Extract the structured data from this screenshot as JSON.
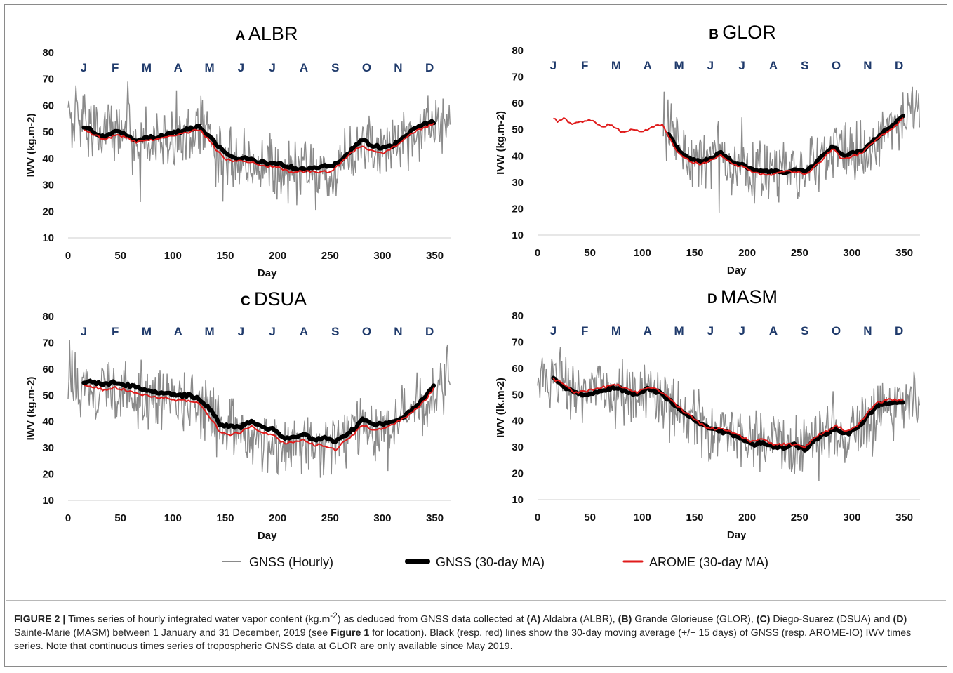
{
  "chart_data": [
    {
      "type": "line",
      "panel_letter": "A",
      "title": "ALBR",
      "xlabel": "Day",
      "ylabel": "IWV (kg.m-2)",
      "xlim": [
        0,
        365
      ],
      "ylim": [
        10,
        80
      ],
      "xticks": [
        "0",
        "50",
        "100",
        "150",
        "200",
        "250",
        "300",
        "350"
      ],
      "yticks": [
        "10",
        "20",
        "30",
        "40",
        "50",
        "60",
        "70",
        "80"
      ],
      "months": [
        "J",
        "F",
        "M",
        "A",
        "M",
        "J",
        "J",
        "A",
        "S",
        "O",
        "N",
        "D"
      ],
      "hourly_range": [
        0,
        365
      ],
      "ma_range": [
        15,
        350
      ],
      "series": [
        {
          "name": "GNSS (Hourly)",
          "x": [
            0,
            15,
            30,
            45,
            55,
            65,
            75,
            90,
            105,
            120,
            130,
            140,
            150,
            160,
            175,
            190,
            205,
            220,
            235,
            250,
            265,
            280,
            290,
            300,
            310,
            320,
            335,
            350,
            365
          ],
          "values": [
            57,
            54,
            49,
            49,
            50,
            46,
            48,
            47,
            50,
            51,
            51,
            45,
            41,
            39,
            40,
            37,
            36,
            35,
            35,
            34,
            40,
            46,
            45,
            43,
            45,
            47,
            51,
            54,
            53
          ]
        },
        {
          "name": "GNSS (30-day MA)",
          "x": [
            15,
            25,
            35,
            45,
            55,
            65,
            75,
            85,
            95,
            105,
            115,
            125,
            130,
            140,
            150,
            160,
            170,
            180,
            190,
            200,
            210,
            220,
            230,
            240,
            250,
            260,
            270,
            280,
            290,
            300,
            310,
            320,
            330,
            340,
            350
          ],
          "values": [
            52,
            50,
            48,
            50,
            49,
            47,
            48,
            48,
            49,
            50,
            51,
            52,
            50,
            46,
            42,
            40,
            40,
            39,
            38,
            38,
            37,
            36,
            36,
            37,
            37,
            39,
            43,
            47,
            45,
            44,
            45,
            48,
            51,
            53,
            54
          ]
        },
        {
          "name": "AROME (30-day MA)",
          "x": [
            15,
            25,
            35,
            45,
            55,
            65,
            75,
            85,
            95,
            105,
            115,
            125,
            130,
            140,
            150,
            160,
            170,
            180,
            190,
            200,
            210,
            220,
            230,
            240,
            250,
            260,
            270,
            280,
            290,
            300,
            310,
            320,
            330,
            340,
            350
          ],
          "values": [
            51,
            49,
            47,
            49,
            48,
            46,
            47,
            47,
            48,
            49,
            50,
            51,
            49,
            44,
            40,
            39,
            39,
            38,
            37,
            37,
            35,
            35,
            35,
            35,
            35,
            38,
            42,
            45,
            43,
            42,
            44,
            47,
            50,
            52,
            53
          ]
        }
      ]
    },
    {
      "type": "line",
      "panel_letter": "B",
      "title": "GLOR",
      "xlabel": "Day",
      "ylabel": "IVW (kg.m-2)",
      "xlim": [
        0,
        365
      ],
      "ylim": [
        10,
        80
      ],
      "xticks": [
        "0",
        "50",
        "100",
        "150",
        "200",
        "250",
        "300",
        "350"
      ],
      "yticks": [
        "10",
        "20",
        "30",
        "40",
        "50",
        "60",
        "70",
        "80"
      ],
      "months": [
        "J",
        "F",
        "M",
        "A",
        "M",
        "J",
        "J",
        "A",
        "S",
        "O",
        "N",
        "D"
      ],
      "hourly_range": [
        120,
        365
      ],
      "ma_range": [
        125,
        350
      ],
      "series": [
        {
          "name": "GNSS (Hourly)",
          "x": [
            120,
            130,
            140,
            150,
            160,
            175,
            190,
            205,
            220,
            235,
            250,
            265,
            280,
            290,
            300,
            310,
            320,
            335,
            350,
            365
          ],
          "values": [
            52,
            48,
            43,
            39,
            38,
            40,
            37,
            35,
            33,
            34,
            34,
            38,
            43,
            42,
            40,
            42,
            45,
            49,
            54,
            60
          ]
        },
        {
          "name": "GNSS (30-day MA)",
          "x": [
            125,
            135,
            145,
            155,
            165,
            175,
            185,
            195,
            205,
            215,
            225,
            235,
            245,
            255,
            265,
            275,
            282,
            290,
            300,
            310,
            320,
            330,
            340,
            350
          ],
          "values": [
            48,
            42,
            39,
            38,
            39,
            41,
            38,
            37,
            35,
            34,
            34,
            34,
            35,
            34,
            37,
            41,
            44,
            40,
            41,
            42,
            46,
            49,
            52,
            56
          ]
        },
        {
          "name": "AROME (30-day MA)",
          "x": [
            15,
            20,
            25,
            35,
            40,
            50,
            60,
            70,
            80,
            90,
            100,
            110,
            120,
            125,
            135,
            145,
            155,
            165,
            175,
            185,
            195,
            205,
            215,
            225,
            235,
            245,
            255,
            265,
            275,
            282,
            290,
            300,
            310,
            320,
            330,
            340,
            350
          ],
          "values": [
            54,
            53,
            54,
            52,
            53,
            54,
            51,
            52,
            49,
            50,
            49,
            51,
            52,
            47,
            41,
            38,
            37,
            38,
            40,
            37,
            36,
            34,
            33,
            33,
            34,
            34,
            33,
            36,
            40,
            43,
            39,
            40,
            41,
            45,
            48,
            51,
            55
          ]
        }
      ]
    },
    {
      "type": "line",
      "panel_letter": "C",
      "title": "DSUA",
      "xlabel": "Day",
      "ylabel": "IWV (kg.m-2)",
      "xlim": [
        0,
        365
      ],
      "ylim": [
        10,
        80
      ],
      "xticks": [
        "0",
        "50",
        "100",
        "150",
        "200",
        "250",
        "300",
        "350"
      ],
      "yticks": [
        "10",
        "20",
        "30",
        "40",
        "50",
        "60",
        "70",
        "80"
      ],
      "months": [
        "J",
        "F",
        "M",
        "A",
        "M",
        "J",
        "J",
        "A",
        "S",
        "O",
        "N",
        "D"
      ],
      "hourly_range": [
        0,
        365
      ],
      "ma_range": [
        15,
        350
      ],
      "series": [
        {
          "name": "GNSS (Hourly)",
          "x": [
            0,
            15,
            30,
            45,
            60,
            75,
            90,
            105,
            120,
            130,
            140,
            150,
            165,
            180,
            195,
            210,
            225,
            240,
            255,
            270,
            280,
            290,
            300,
            315,
            330,
            345,
            360,
            365
          ],
          "values": [
            56,
            54,
            53,
            52,
            51,
            50,
            49,
            49,
            48,
            45,
            41,
            36,
            36,
            35,
            32,
            31,
            32,
            31,
            32,
            36,
            40,
            38,
            37,
            40,
            44,
            48,
            57,
            58
          ]
        },
        {
          "name": "GNSS (30-day MA)",
          "x": [
            15,
            25,
            35,
            45,
            55,
            65,
            75,
            85,
            95,
            105,
            115,
            125,
            135,
            145,
            155,
            165,
            175,
            185,
            195,
            205,
            215,
            225,
            235,
            245,
            255,
            265,
            275,
            280,
            290,
            300,
            310,
            320,
            330,
            340,
            350
          ],
          "values": [
            55,
            55,
            54,
            55,
            54,
            53,
            52,
            51,
            51,
            50,
            50,
            49,
            45,
            39,
            38,
            38,
            40,
            38,
            37,
            34,
            34,
            35,
            33,
            34,
            32,
            35,
            38,
            41,
            39,
            39,
            40,
            42,
            45,
            49,
            54
          ]
        },
        {
          "name": "AROME (30-day MA)",
          "x": [
            15,
            25,
            35,
            45,
            55,
            65,
            75,
            85,
            95,
            105,
            115,
            125,
            135,
            145,
            155,
            165,
            175,
            185,
            195,
            205,
            215,
            225,
            235,
            245,
            255,
            265,
            275,
            280,
            290,
            300,
            310,
            320,
            330,
            340,
            350
          ],
          "values": [
            54,
            53,
            52,
            53,
            52,
            51,
            50,
            49,
            49,
            48,
            48,
            47,
            42,
            36,
            35,
            36,
            38,
            36,
            35,
            32,
            32,
            33,
            31,
            31,
            29,
            33,
            36,
            39,
            37,
            37,
            39,
            41,
            44,
            48,
            53
          ]
        }
      ]
    },
    {
      "type": "line",
      "panel_letter": "D",
      "title": "MASM",
      "xlabel": "Day",
      "ylabel": "IWV (lk.m-2)",
      "xlim": [
        0,
        365
      ],
      "ylim": [
        10,
        80
      ],
      "xticks": [
        "0",
        "50",
        "100",
        "150",
        "200",
        "250",
        "300",
        "350"
      ],
      "yticks": [
        "10",
        "20",
        "30",
        "40",
        "50",
        "60",
        "70",
        "80"
      ],
      "months": [
        "J",
        "F",
        "M",
        "A",
        "M",
        "J",
        "J",
        "A",
        "S",
        "O",
        "N",
        "D"
      ],
      "hourly_range": [
        0,
        365
      ],
      "ma_range": [
        15,
        350
      ],
      "series": [
        {
          "name": "GNSS (Hourly)",
          "x": [
            0,
            15,
            30,
            45,
            60,
            75,
            90,
            105,
            120,
            135,
            150,
            165,
            180,
            195,
            210,
            225,
            240,
            255,
            270,
            285,
            300,
            315,
            330,
            345,
            360,
            365
          ],
          "values": [
            54,
            56,
            53,
            51,
            52,
            51,
            49,
            52,
            49,
            44,
            39,
            36,
            35,
            33,
            30,
            31,
            30,
            31,
            34,
            36,
            36,
            40,
            46,
            47,
            50,
            48
          ]
        },
        {
          "name": "GNSS (30-day MA)",
          "x": [
            15,
            25,
            35,
            45,
            55,
            65,
            75,
            85,
            95,
            105,
            115,
            125,
            135,
            145,
            155,
            165,
            175,
            185,
            195,
            205,
            215,
            225,
            235,
            245,
            255,
            265,
            275,
            285,
            295,
            305,
            315,
            325,
            335,
            345,
            350
          ],
          "values": [
            56,
            53,
            51,
            50,
            51,
            52,
            53,
            51,
            50,
            52,
            51,
            48,
            45,
            42,
            39,
            37,
            36,
            35,
            33,
            31,
            32,
            30,
            30,
            31,
            29,
            33,
            35,
            37,
            35,
            37,
            42,
            46,
            47,
            47,
            47
          ]
        },
        {
          "name": "AROME (30-day MA)",
          "x": [
            15,
            25,
            35,
            45,
            55,
            65,
            75,
            85,
            95,
            105,
            115,
            125,
            135,
            145,
            155,
            165,
            175,
            185,
            195,
            205,
            215,
            225,
            235,
            245,
            255,
            265,
            275,
            285,
            295,
            305,
            315,
            325,
            335,
            345,
            350
          ],
          "values": [
            56,
            54,
            51,
            51,
            52,
            53,
            54,
            52,
            51,
            53,
            52,
            49,
            45,
            42,
            39,
            37,
            37,
            36,
            34,
            32,
            33,
            31,
            31,
            31,
            30,
            34,
            36,
            38,
            36,
            38,
            43,
            47,
            48,
            48,
            48
          ]
        }
      ]
    }
  ],
  "legend": [
    {
      "label": "GNSS (Hourly)",
      "color": "#8a8a8a"
    },
    {
      "label": "GNSS (30-day MA)",
      "color": "#000000"
    },
    {
      "label": "AROME (30-day MA)",
      "color": "#e01b1b"
    }
  ],
  "colors": {
    "hourly": "#8a8a8a",
    "ma_gnss": "#000000",
    "ma_arome": "#e01b1b",
    "month": "#1f3a6b"
  },
  "caption": {
    "figure_label": "FIGURE 2 |",
    "t1": " Times series of hourly integrated water vapor content (kg.m",
    "sup": "-2",
    "t2": ") as deduced from GNSS data collected at ",
    "a": "(A)",
    "t3": " Aldabra (ALBR), ",
    "b": "(B)",
    "t4": " Grande Glorieuse (GLOR), ",
    "c": "(C)",
    "t5": " Diego-Suarez (DSUA) and ",
    "d": "(D)",
    "t6": " Sainte-Marie (MASM) between 1 January and 31 December, 2019 (see ",
    "fig1": "Figure 1",
    "t7": " for location). Black (resp. red) lines show the 30-day moving average (+/− 15 days) of GNSS (resp. AROME-IO) IWV times series. Note that continuous times series of tropospheric GNSS data at GLOR are only available since May 2019."
  }
}
